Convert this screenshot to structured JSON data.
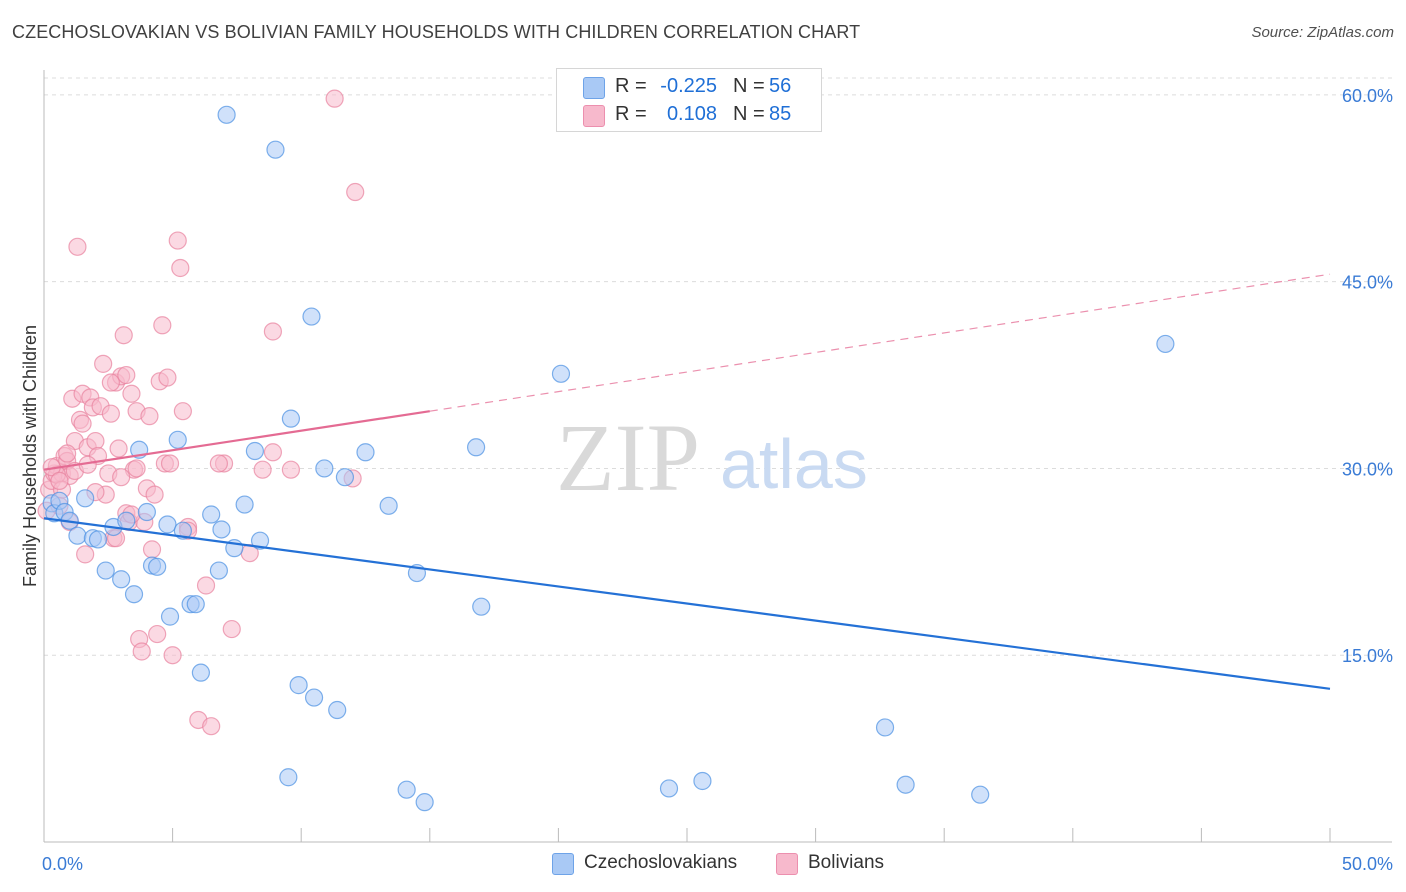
{
  "title": "CZECHOSLOVAKIAN VS BOLIVIAN FAMILY HOUSEHOLDS WITH CHILDREN CORRELATION CHART",
  "source": "Source: ZipAtlas.com",
  "watermark": {
    "zip": "ZIP",
    "atlas": "atlas"
  },
  "legend": {
    "rows": [
      {
        "r_label": "R =",
        "r_value": "-0.225",
        "n_label": "N =",
        "n_value": "56",
        "color": "#a9c9f5"
      },
      {
        "r_label": "R =",
        "r_value": "0.108",
        "n_label": "N =",
        "n_value": "85",
        "color": "#f7b9cc"
      }
    ]
  },
  "bottom_legend": [
    {
      "label": "Czechoslovakians",
      "color": "#a9c9f5"
    },
    {
      "label": "Bolivians",
      "color": "#f7b9cc"
    }
  ],
  "chart_data": {
    "type": "scatter",
    "title": "CZECHOSLOVAKIAN VS BOLIVIAN FAMILY HOUSEHOLDS WITH CHILDREN CORRELATION CHART",
    "xlabel": "",
    "ylabel": "Family Households with Children",
    "xlim": [
      0,
      50
    ],
    "ylim": [
      0,
      62
    ],
    "x_tick_labels": [
      "0.0%",
      "50.0%"
    ],
    "y_ticks": [
      15,
      30,
      45,
      60
    ],
    "y_tick_labels": [
      "15.0%",
      "30.0%",
      "45.0%",
      "60.0%"
    ],
    "grid": true,
    "legend_position": "top-center",
    "series": [
      {
        "name": "Czechoslovakians",
        "color": "#4a90e2",
        "fill": "#a9c9f5",
        "trend": {
          "x": [
            0,
            50
          ],
          "y": [
            26.0,
            12.3
          ],
          "style": "solid",
          "line_color": "#2471d6"
        },
        "points": [
          [
            0.3,
            27.2
          ],
          [
            0.4,
            26.4
          ],
          [
            0.6,
            27.4
          ],
          [
            0.8,
            26.5
          ],
          [
            1.0,
            25.8
          ],
          [
            1.3,
            24.6
          ],
          [
            1.6,
            27.6
          ],
          [
            1.9,
            24.4
          ],
          [
            2.1,
            24.3
          ],
          [
            2.4,
            21.8
          ],
          [
            2.7,
            25.3
          ],
          [
            3.0,
            21.1
          ],
          [
            3.2,
            25.8
          ],
          [
            3.5,
            19.9
          ],
          [
            3.7,
            31.5
          ],
          [
            4.0,
            26.5
          ],
          [
            4.2,
            22.2
          ],
          [
            4.4,
            22.1
          ],
          [
            4.8,
            25.5
          ],
          [
            4.9,
            18.1
          ],
          [
            5.2,
            32.3
          ],
          [
            5.4,
            25.0
          ],
          [
            5.7,
            19.1
          ],
          [
            5.9,
            19.1
          ],
          [
            6.1,
            13.6
          ],
          [
            6.5,
            26.3
          ],
          [
            6.8,
            21.8
          ],
          [
            6.9,
            25.1
          ],
          [
            7.1,
            58.4
          ],
          [
            7.4,
            23.6
          ],
          [
            7.8,
            27.1
          ],
          [
            8.2,
            31.4
          ],
          [
            8.4,
            24.2
          ],
          [
            9.0,
            55.6
          ],
          [
            9.5,
            5.2
          ],
          [
            9.6,
            34.0
          ],
          [
            9.9,
            12.6
          ],
          [
            10.4,
            42.2
          ],
          [
            10.5,
            11.6
          ],
          [
            10.9,
            30.0
          ],
          [
            11.4,
            10.6
          ],
          [
            11.7,
            29.3
          ],
          [
            12.5,
            31.3
          ],
          [
            13.4,
            27.0
          ],
          [
            14.1,
            4.2
          ],
          [
            14.5,
            21.6
          ],
          [
            14.8,
            3.2
          ],
          [
            16.8,
            31.7
          ],
          [
            17.0,
            18.9
          ],
          [
            20.1,
            37.6
          ],
          [
            24.3,
            4.3
          ],
          [
            25.6,
            4.9
          ],
          [
            32.7,
            9.2
          ],
          [
            33.5,
            4.6
          ],
          [
            36.4,
            3.8
          ],
          [
            43.6,
            40.0
          ]
        ]
      },
      {
        "name": "Bolivians",
        "color": "#e8819e",
        "fill": "#f7b9cc",
        "trend": {
          "x": [
            0,
            15
          ],
          "y": [
            29.9,
            34.6
          ],
          "style": "solid",
          "line_color": "#e46b93",
          "extension": {
            "x": [
              15,
              50
            ],
            "y": [
              34.6,
              45.6
            ],
            "style": "dashed"
          }
        },
        "points": [
          [
            0.1,
            26.6
          ],
          [
            0.2,
            28.3
          ],
          [
            0.3,
            29.0
          ],
          [
            0.4,
            29.6
          ],
          [
            0.5,
            30.2
          ],
          [
            0.6,
            27.0
          ],
          [
            0.7,
            29.6
          ],
          [
            0.8,
            31.0
          ],
          [
            0.9,
            30.6
          ],
          [
            1.0,
            29.4
          ],
          [
            1.1,
            35.6
          ],
          [
            1.2,
            32.2
          ],
          [
            1.3,
            47.8
          ],
          [
            1.4,
            33.9
          ],
          [
            1.5,
            36.0
          ],
          [
            1.6,
            23.1
          ],
          [
            1.7,
            31.7
          ],
          [
            1.8,
            35.7
          ],
          [
            1.9,
            34.9
          ],
          [
            2.0,
            32.2
          ],
          [
            2.1,
            31.0
          ],
          [
            2.2,
            35.0
          ],
          [
            2.3,
            38.4
          ],
          [
            2.4,
            27.9
          ],
          [
            2.5,
            29.6
          ],
          [
            2.6,
            34.4
          ],
          [
            2.7,
            24.4
          ],
          [
            2.8,
            36.9
          ],
          [
            2.9,
            31.6
          ],
          [
            3.0,
            37.4
          ],
          [
            3.1,
            40.7
          ],
          [
            3.2,
            26.4
          ],
          [
            3.3,
            25.7
          ],
          [
            3.4,
            36.0
          ],
          [
            3.5,
            29.9
          ],
          [
            3.6,
            34.6
          ],
          [
            3.7,
            16.3
          ],
          [
            3.8,
            15.3
          ],
          [
            3.9,
            25.7
          ],
          [
            4.0,
            28.4
          ],
          [
            4.1,
            34.2
          ],
          [
            4.3,
            27.9
          ],
          [
            4.4,
            16.7
          ],
          [
            4.5,
            37.0
          ],
          [
            4.6,
            41.5
          ],
          [
            4.7,
            30.4
          ],
          [
            4.8,
            37.3
          ],
          [
            5.0,
            15.0
          ],
          [
            5.2,
            48.3
          ],
          [
            5.3,
            46.1
          ],
          [
            5.4,
            34.6
          ],
          [
            5.6,
            25.3
          ],
          [
            6.0,
            9.8
          ],
          [
            6.3,
            20.6
          ],
          [
            6.5,
            9.3
          ],
          [
            7.0,
            30.4
          ],
          [
            7.3,
            17.1
          ],
          [
            8.0,
            23.2
          ],
          [
            8.5,
            29.9
          ],
          [
            8.9,
            41.0
          ],
          [
            8.9,
            31.3
          ],
          [
            9.6,
            29.9
          ],
          [
            11.3,
            59.7
          ],
          [
            12.0,
            29.2
          ],
          [
            12.1,
            52.2
          ],
          [
            0.5,
            29.5
          ],
          [
            0.7,
            28.3
          ],
          [
            0.9,
            31.2
          ],
          [
            1.2,
            29.8
          ],
          [
            1.5,
            33.6
          ],
          [
            1.7,
            30.3
          ],
          [
            2.0,
            28.1
          ],
          [
            2.6,
            36.9
          ],
          [
            3.0,
            29.3
          ],
          [
            3.2,
            37.5
          ],
          [
            3.6,
            30.0
          ],
          [
            4.2,
            23.5
          ],
          [
            4.9,
            30.4
          ],
          [
            5.6,
            25.0
          ],
          [
            6.8,
            30.4
          ],
          [
            0.3,
            30.1
          ],
          [
            0.6,
            29.0
          ],
          [
            1.0,
            25.7
          ],
          [
            2.8,
            24.4
          ],
          [
            3.4,
            26.3
          ]
        ]
      }
    ]
  }
}
